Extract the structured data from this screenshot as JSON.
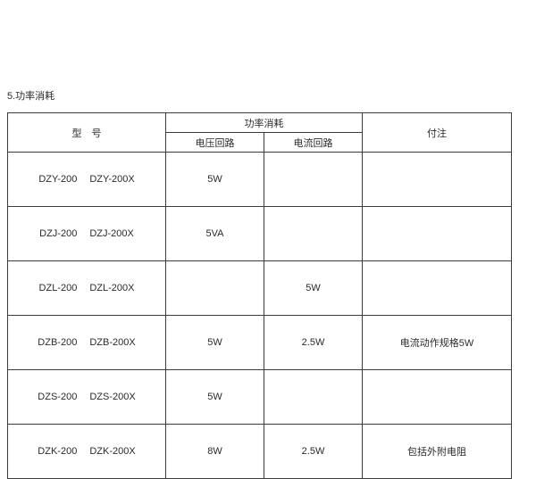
{
  "page": {
    "heading": "5.功率消耗"
  },
  "colors": {
    "text-color": "#2a2a2a",
    "border-color": "#3c3c3c",
    "bg-color": "#ffffff"
  },
  "table": {
    "header": {
      "model": "型　号",
      "power_group": "功率消耗",
      "voltage_circuit": "电压回路",
      "current_circuit": "电流回路",
      "notes": "付注"
    },
    "rows": [
      {
        "model_a": "DZY-200",
        "model_b": "DZY-200X",
        "voltage": "5W",
        "current": "",
        "note": ""
      },
      {
        "model_a": "DZJ-200",
        "model_b": "DZJ-200X",
        "voltage": "5VA",
        "current": "",
        "note": ""
      },
      {
        "model_a": "DZL-200",
        "model_b": "DZL-200X",
        "voltage": "",
        "current": "5W",
        "note": ""
      },
      {
        "model_a": "DZB-200",
        "model_b": "DZB-200X",
        "voltage": "5W",
        "current": "2.5W",
        "note": "电流动作规格5W"
      },
      {
        "model_a": "DZS-200",
        "model_b": "DZS-200X",
        "voltage": "5W",
        "current": "",
        "note": ""
      },
      {
        "model_a": "DZK-200",
        "model_b": "DZK-200X",
        "voltage": "8W",
        "current": "2.5W",
        "note": "包括外附电阻"
      }
    ]
  }
}
